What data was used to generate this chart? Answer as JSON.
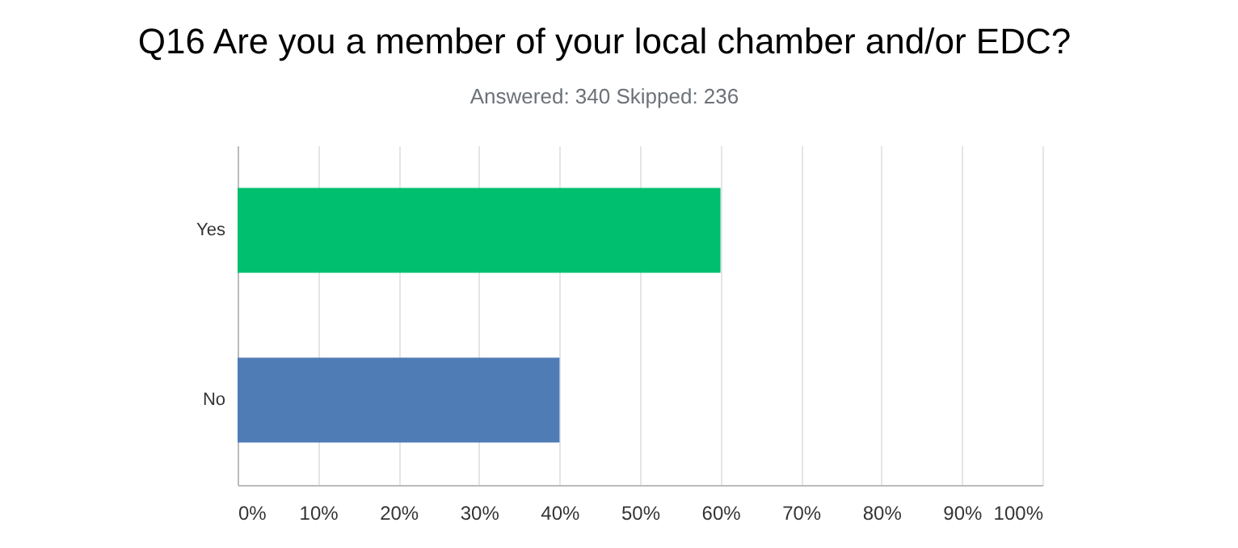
{
  "chart_data": {
    "type": "bar",
    "orientation": "horizontal",
    "title": "Q16 Are you a member of your local chamber and/or EDC?",
    "subtitle": "Answered: 340    Skipped: 236",
    "categories": [
      "Yes",
      "No"
    ],
    "values": [
      60,
      40
    ],
    "colors": [
      "#00bf6f",
      "#507cb6"
    ],
    "xlim": [
      0,
      100
    ],
    "xticks": [
      {
        "value": 0,
        "label": "0%"
      },
      {
        "value": 10,
        "label": "10%"
      },
      {
        "value": 20,
        "label": "20%"
      },
      {
        "value": 30,
        "label": "30%"
      },
      {
        "value": 40,
        "label": "40%"
      },
      {
        "value": 50,
        "label": "50%"
      },
      {
        "value": 60,
        "label": "60%"
      },
      {
        "value": 70,
        "label": "70%"
      },
      {
        "value": 80,
        "label": "80%"
      },
      {
        "value": 90,
        "label": "90%"
      },
      {
        "value": 100,
        "label": "100%"
      }
    ],
    "grid": "x",
    "legend": false
  }
}
